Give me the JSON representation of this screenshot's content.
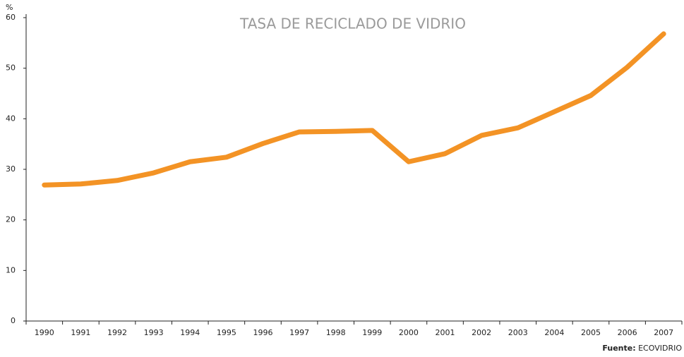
{
  "chart_data": {
    "type": "line",
    "title": "TASA DE RECICLADO DE VIDRIO",
    "y_unit": "%",
    "categories": [
      "1990",
      "1991",
      "1992",
      "1993",
      "1994",
      "1995",
      "1996",
      "1997",
      "1998",
      "1999",
      "2000",
      "2001",
      "2002",
      "2003",
      "2004",
      "2005",
      "2006",
      "2007"
    ],
    "series": [
      {
        "name": "Tasa de reciclado",
        "color": "#f39325",
        "values": [
          26.9,
          27.1,
          27.8,
          29.3,
          31.5,
          32.4,
          35.1,
          37.4,
          37.5,
          37.7,
          31.5,
          33.1,
          36.7,
          38.2,
          41.4,
          44.6,
          50.2,
          56.8
        ]
      }
    ],
    "ylim": [
      0,
      60
    ],
    "yticks": [
      0,
      10,
      20,
      30,
      40,
      50,
      60
    ],
    "source_label": "Fuente:",
    "source": "ECOVIDRIO",
    "legend": false,
    "grid": false
  }
}
